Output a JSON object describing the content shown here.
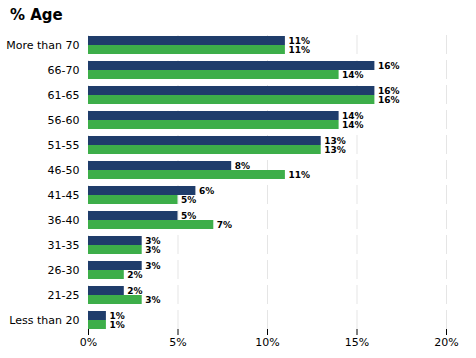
{
  "chart_data": {
    "type": "bar",
    "title": "% Age",
    "orientation": "horizontal",
    "categories": [
      "More than 70",
      "66-70",
      "61-65",
      "56-60",
      "51-55",
      "46-50",
      "41-45",
      "36-40",
      "31-35",
      "26-30",
      "21-25",
      "Less than 20"
    ],
    "series": [
      {
        "color": "#3dae49",
        "values": [
          11,
          14,
          16,
          14,
          13,
          11,
          5,
          7,
          3,
          2,
          3,
          1
        ],
        "value_labels": [
          "11%",
          "14%",
          "16%",
          "14%",
          "13%",
          "11%",
          "5%",
          "7%",
          "3%",
          "2%",
          "3%",
          "1%"
        ]
      },
      {
        "color": "#1f3d6b",
        "values": [
          11,
          16,
          16,
          14,
          13,
          8,
          6,
          5,
          3,
          3,
          2,
          1
        ],
        "value_labels": [
          "11%",
          "16%",
          "16%",
          "14%",
          "13%",
          "8%",
          "6%",
          "5%",
          "3%",
          "3%",
          "2%",
          "1%"
        ]
      }
    ],
    "xlim": [
      0,
      20
    ],
    "xticks": [
      {
        "value": 0,
        "label": "0%"
      },
      {
        "value": 5,
        "label": "5%"
      },
      {
        "value": 10,
        "label": "10%"
      },
      {
        "value": 15,
        "label": "15%"
      },
      {
        "value": 20,
        "label": "20%"
      }
    ],
    "grid": true,
    "data_labels": true
  }
}
